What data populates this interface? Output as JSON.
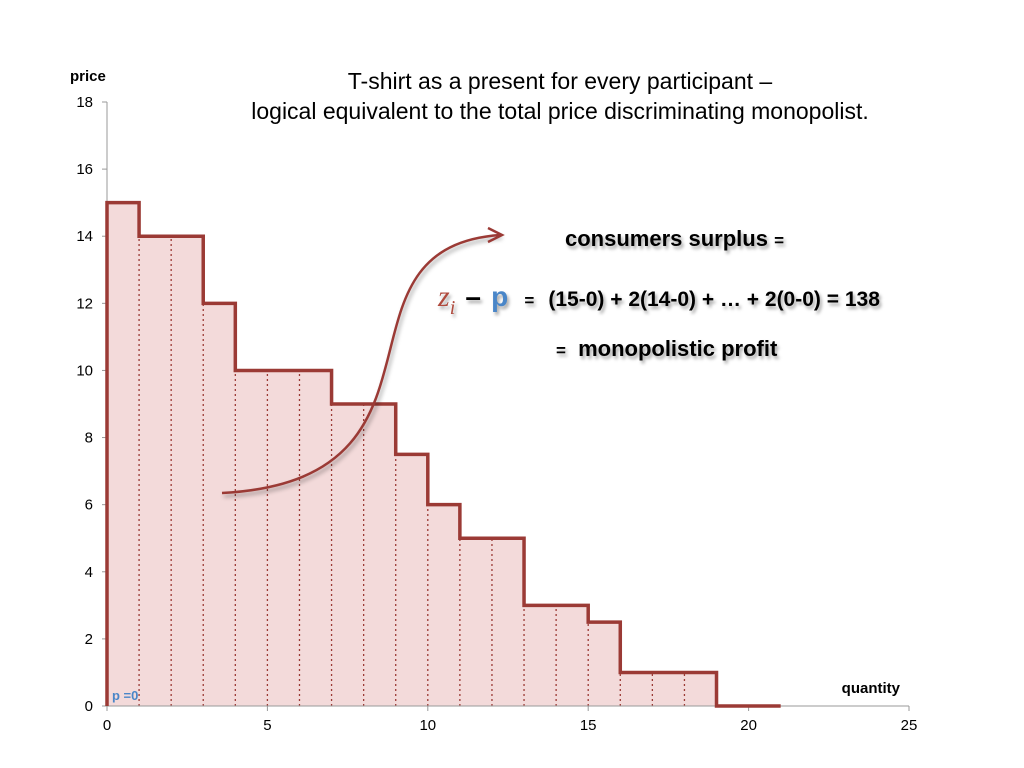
{
  "slide": {
    "title_line1": "T-shirt as a present for every participant –",
    "title_line2": "logical equivalent to the total price discriminating monopolist."
  },
  "annotation": {
    "cs_label": "consumers surplus",
    "cs_equals": "=",
    "z_symbol": "z",
    "z_sub": "i",
    "minus": "–",
    "p_symbol": "p",
    "eq_sign": "=",
    "formula": "(15-0) + 2(14-0) + … + 2(0-0) = 138",
    "profit_equals": "=",
    "profit_label": "monopolistic  profit",
    "arrow_icon": "curved-arrow-icon"
  },
  "colors": {
    "step": "#9b3a35",
    "fill": "#f3dada",
    "p_label": "#4a86c8",
    "z_label": "#b04a3d"
  },
  "chart_data": {
    "type": "area",
    "xlabel": "quantity",
    "ylabel": "price",
    "xlim": [
      0,
      25
    ],
    "ylim": [
      0,
      18
    ],
    "x_ticks": [
      "0",
      "5",
      "10",
      "15",
      "20",
      "25"
    ],
    "y_ticks": [
      "0",
      "2",
      "4",
      "6",
      "8",
      "10",
      "12",
      "14",
      "16",
      "18"
    ],
    "grid": false,
    "series": [
      {
        "type": "step",
        "x": [
          0,
          1,
          2,
          3,
          4,
          5,
          6,
          7,
          8,
          9,
          10,
          11,
          12,
          13,
          14,
          15,
          16,
          17,
          18,
          19,
          20
        ],
        "values": [
          15,
          14,
          14,
          12,
          10,
          10,
          10,
          9,
          9,
          7.5,
          6,
          5,
          5,
          3,
          3,
          2.5,
          1,
          1,
          1,
          0,
          0
        ],
        "end_x": 21
      }
    ],
    "price_line_label": "p =0"
  }
}
